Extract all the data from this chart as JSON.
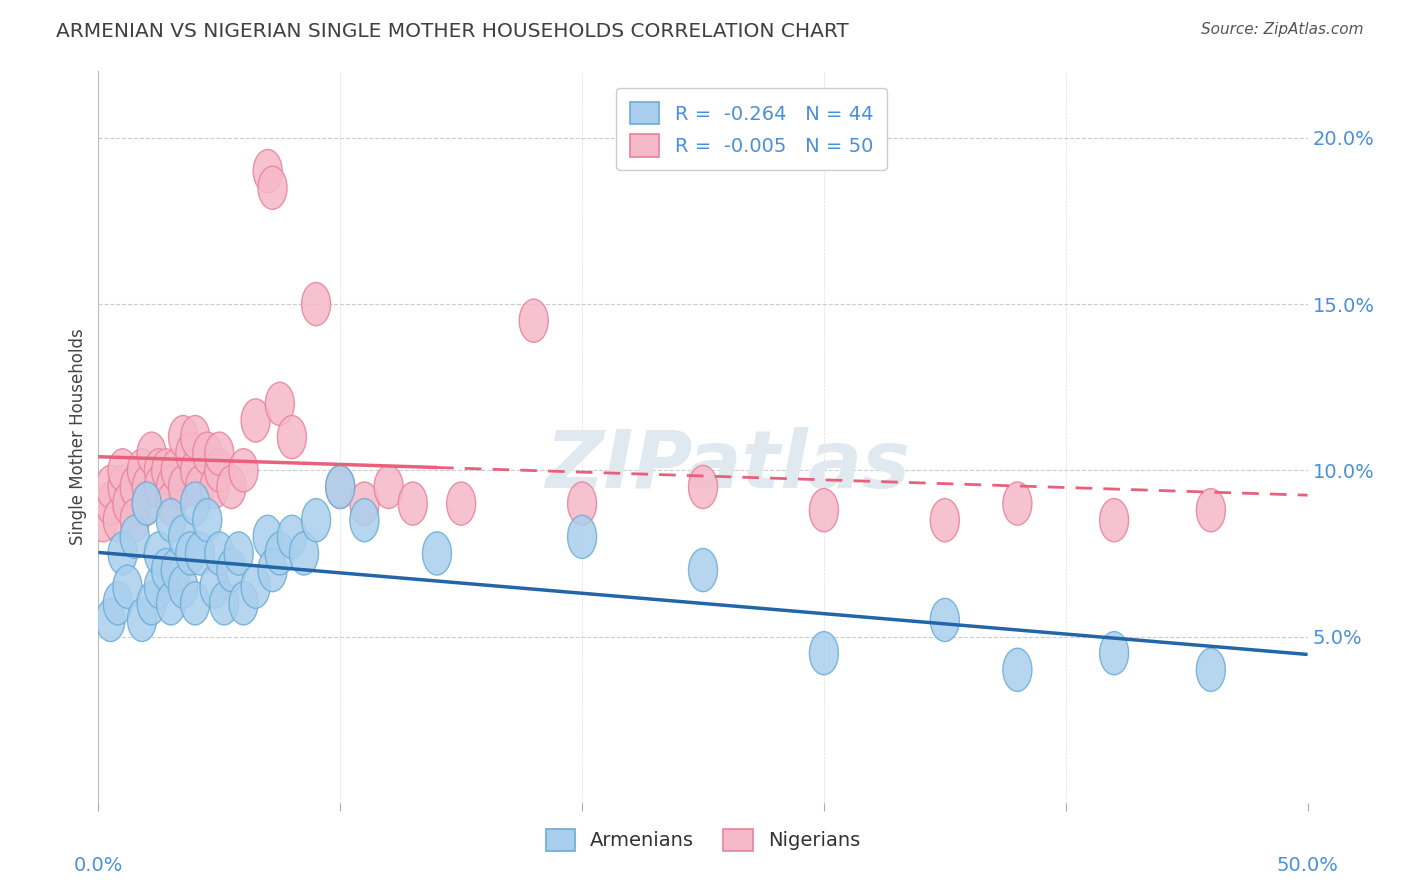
{
  "title": "ARMENIAN VS NIGERIAN SINGLE MOTHER HOUSEHOLDS CORRELATION CHART",
  "source": "Source: ZipAtlas.com",
  "ylabel": "Single Mother Households",
  "xlim": [
    0.0,
    0.5
  ],
  "ylim": [
    0.0,
    0.22
  ],
  "yticks": [
    0.05,
    0.1,
    0.15,
    0.2
  ],
  "ytick_labels": [
    "5.0%",
    "10.0%",
    "15.0%",
    "20.0%"
  ],
  "xticks": [
    0.0,
    0.1,
    0.2,
    0.3,
    0.4,
    0.5
  ],
  "armenian_R": -0.264,
  "armenian_N": 44,
  "nigerian_R": -0.005,
  "nigerian_N": 50,
  "armenian_color": "#aacfee",
  "nigerian_color": "#f5b8c8",
  "armenian_edge_color": "#6aadd5",
  "nigerian_edge_color": "#e8829a",
  "armenian_line_color": "#2366a8",
  "nigerian_line_color": "#e8607a",
  "background_color": "#ffffff",
  "grid_color": "#cccccc",
  "title_color": "#404040",
  "axis_label_color": "#4a90d9",
  "legend_text_color": "#4a90d9",
  "source_color": "#555555",
  "watermark_text": "ZIPatlas",
  "watermark_color": "#e0e8f0",
  "armenian_x": [
    0.005,
    0.008,
    0.01,
    0.012,
    0.015,
    0.018,
    0.02,
    0.022,
    0.025,
    0.025,
    0.028,
    0.03,
    0.03,
    0.032,
    0.035,
    0.035,
    0.038,
    0.04,
    0.04,
    0.042,
    0.045,
    0.048,
    0.05,
    0.052,
    0.055,
    0.058,
    0.06,
    0.065,
    0.07,
    0.072,
    0.075,
    0.08,
    0.085,
    0.09,
    0.1,
    0.11,
    0.14,
    0.2,
    0.25,
    0.3,
    0.35,
    0.38,
    0.42,
    0.46
  ],
  "armenian_y": [
    0.055,
    0.06,
    0.075,
    0.065,
    0.08,
    0.055,
    0.09,
    0.06,
    0.065,
    0.075,
    0.07,
    0.085,
    0.06,
    0.07,
    0.08,
    0.065,
    0.075,
    0.09,
    0.06,
    0.075,
    0.085,
    0.065,
    0.075,
    0.06,
    0.07,
    0.075,
    0.06,
    0.065,
    0.08,
    0.07,
    0.075,
    0.08,
    0.075,
    0.085,
    0.095,
    0.085,
    0.075,
    0.08,
    0.07,
    0.045,
    0.055,
    0.04,
    0.045,
    0.04
  ],
  "nigerian_x": [
    0.002,
    0.005,
    0.005,
    0.008,
    0.01,
    0.01,
    0.012,
    0.015,
    0.015,
    0.018,
    0.02,
    0.02,
    0.022,
    0.025,
    0.025,
    0.028,
    0.03,
    0.03,
    0.032,
    0.035,
    0.035,
    0.038,
    0.04,
    0.04,
    0.042,
    0.045,
    0.048,
    0.05,
    0.05,
    0.055,
    0.06,
    0.065,
    0.07,
    0.072,
    0.075,
    0.08,
    0.09,
    0.1,
    0.11,
    0.12,
    0.13,
    0.15,
    0.18,
    0.2,
    0.25,
    0.3,
    0.35,
    0.38,
    0.42,
    0.46
  ],
  "nigerian_y": [
    0.085,
    0.09,
    0.095,
    0.085,
    0.095,
    0.1,
    0.09,
    0.095,
    0.085,
    0.1,
    0.095,
    0.09,
    0.105,
    0.1,
    0.095,
    0.1,
    0.095,
    0.09,
    0.1,
    0.11,
    0.095,
    0.105,
    0.1,
    0.11,
    0.095,
    0.105,
    0.095,
    0.1,
    0.105,
    0.095,
    0.1,
    0.115,
    0.19,
    0.185,
    0.12,
    0.11,
    0.15,
    0.095,
    0.09,
    0.095,
    0.09,
    0.09,
    0.145,
    0.09,
    0.095,
    0.088,
    0.085,
    0.09,
    0.085,
    0.088
  ]
}
